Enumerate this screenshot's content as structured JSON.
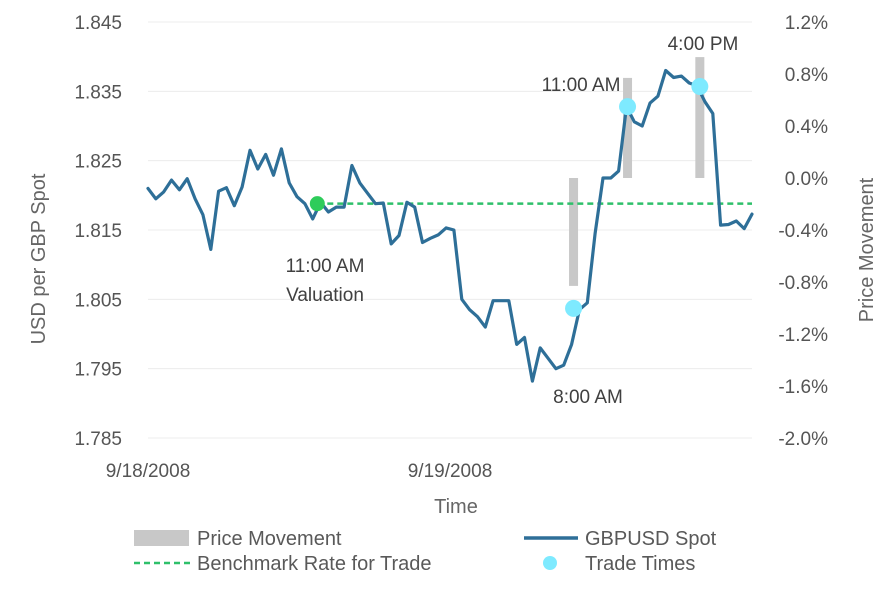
{
  "chart_data": {
    "type": "line",
    "colors": {
      "spot": "#2e6f98",
      "benchmark": "#2ec06a",
      "movement": "#c8c8c8",
      "trade_point": "#7eeaff",
      "valuation_point": "#2ecc5a",
      "grid": "#ececec"
    },
    "xlabel": "Time",
    "ylabel_left": "USD per GBP Spot",
    "ylabel_right": "Price Movement",
    "left_axis": {
      "min": 1.785,
      "max": 1.845,
      "ticks": [
        "1.785",
        "1.795",
        "1.805",
        "1.815",
        "1.825",
        "1.835",
        "1.845"
      ]
    },
    "right_axis": {
      "min": -2.0,
      "max": 1.2,
      "ticks": [
        "-2.0%",
        "-1.6%",
        "-1.2%",
        "-0.8%",
        "-0.4%",
        "0.0%",
        "0.4%",
        "0.8%",
        "1.2%"
      ]
    },
    "x_domain": [
      0,
      66
    ],
    "x_ticks": [
      {
        "x": 0,
        "label": "9/18/2008"
      },
      {
        "x": 33,
        "label": "9/19/2008"
      }
    ],
    "series": [
      {
        "name": "GBPUSD Spot",
        "values": [
          1.821,
          1.8195,
          1.8205,
          1.8222,
          1.8208,
          1.8224,
          1.8195,
          1.8172,
          1.8122,
          1.8206,
          1.8211,
          1.8185,
          1.8212,
          1.8265,
          1.8238,
          1.8259,
          1.8229,
          1.8267,
          1.8218,
          1.8198,
          1.8188,
          1.8166,
          1.819,
          1.8176,
          1.8183,
          1.8183,
          1.8243,
          1.8218,
          1.8203,
          1.8188,
          1.8189,
          1.813,
          1.8142,
          1.819,
          1.8183,
          1.8132,
          1.8138,
          1.8143,
          1.8153,
          1.815,
          1.805,
          1.8035,
          1.8025,
          1.801,
          1.8048,
          1.8048,
          1.8048,
          1.7985,
          1.7995,
          1.7932,
          1.798,
          1.7965,
          1.795,
          1.7955,
          1.7985,
          1.8035,
          1.8045,
          1.8145,
          1.8225,
          1.8225,
          1.8235,
          1.8328,
          1.8306,
          1.83,
          1.8333,
          1.8343,
          1.838,
          1.837,
          1.8372,
          1.8362,
          1.8358,
          1.8335,
          1.8318,
          1.8157,
          1.8158,
          1.8163,
          1.8152,
          1.8173
        ]
      }
    ],
    "benchmark": {
      "name": "Benchmark Rate for Trade",
      "value": 1.8188,
      "x_start": 18.5
    },
    "valuation_point": {
      "x": 18.5,
      "value": 1.8188,
      "label_line1": "11:00 AM",
      "label_line2": "Valuation"
    },
    "trade_points": [
      {
        "label": "8:00 AM",
        "x": 46.5,
        "value": 1.8037,
        "movement_pct": -0.83
      },
      {
        "label": "11:00 AM",
        "x": 52.4,
        "value": 1.8328,
        "movement_pct": 0.77
      },
      {
        "label": "4:00 PM",
        "x": 60.3,
        "value": 1.8357,
        "movement_pct": 0.93
      }
    ],
    "legend": {
      "movement": "Price Movement",
      "spot": "GBPUSD Spot",
      "benchmark": "Benchmark Rate for Trade",
      "trades": "Trade Times"
    }
  }
}
